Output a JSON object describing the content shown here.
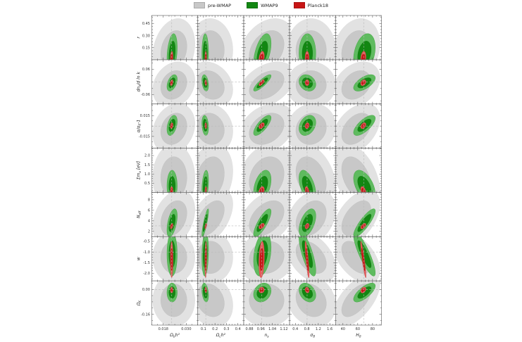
{
  "chart_data": {
    "type": "contour-grid",
    "description": "7x5 grid of 2D posterior contour panels comparing three CMB datasets",
    "legend": {
      "position": "top-center",
      "items": [
        {
          "label": "pre-WMAP",
          "color_outer": "#e2e2e2",
          "color_inner": "#c8c8c8"
        },
        {
          "label": "WMAP9",
          "color_outer": "#5fbb5f",
          "color_inner": "#128712"
        },
        {
          "label": "Planck18",
          "color_outer": "#e45c5c",
          "color_inner": "#c81515"
        }
      ]
    },
    "columns": [
      {
        "key": "ombh2",
        "label": [
          {
            "t": "Ω"
          },
          {
            "t": "b",
            "sub": true
          },
          {
            "t": "h²"
          }
        ],
        "range": [
          0.012,
          0.036
        ],
        "ticks": [
          {
            "v": 0.018,
            "l": "0.018"
          },
          {
            "v": 0.03,
            "l": "0.030"
          }
        ],
        "fiducial": 0.0224
      },
      {
        "key": "omch2",
        "label": [
          {
            "t": "Ω"
          },
          {
            "t": "c",
            "sub": true
          },
          {
            "t": "h²"
          }
        ],
        "range": [
          0.05,
          0.45
        ],
        "ticks": [
          {
            "v": 0.1,
            "l": "0.1"
          },
          {
            "v": 0.2,
            "l": "0.2"
          },
          {
            "v": 0.3,
            "l": "0.3"
          },
          {
            "v": 0.4,
            "l": "0.4"
          }
        ],
        "fiducial": 0.12
      },
      {
        "key": "ns",
        "label": [
          {
            "t": "n"
          },
          {
            "t": "s",
            "sub": true
          }
        ],
        "range": [
          0.84,
          1.16
        ],
        "ticks": [
          {
            "v": 0.88,
            "l": "0.88"
          },
          {
            "v": 0.96,
            "l": "0.96"
          },
          {
            "v": 1.04,
            "l": "1.04"
          },
          {
            "v": 1.12,
            "l": "1.12"
          }
        ],
        "fiducial": 0.965
      },
      {
        "key": "sigma8",
        "label": [
          {
            "t": "σ"
          },
          {
            "t": "8",
            "sub": true
          }
        ],
        "range": [
          0.2,
          1.8
        ],
        "ticks": [
          {
            "v": 0.4,
            "l": "0.4"
          },
          {
            "v": 0.8,
            "l": "0.8"
          },
          {
            "v": 1.2,
            "l": "1.2"
          },
          {
            "v": 1.6,
            "l": "1.6"
          }
        ],
        "fiducial": 0.81
      },
      {
        "key": "H0",
        "label": [
          {
            "t": "H"
          },
          {
            "t": "0",
            "sub": true
          }
        ],
        "range": [
          30,
          92
        ],
        "ticks": [
          {
            "v": 40,
            "l": "40"
          },
          {
            "v": 60,
            "l": "60"
          },
          {
            "v": 80,
            "l": "80"
          }
        ],
        "fiducial": 68
      }
    ],
    "rows": [
      {
        "key": "r",
        "label": [
          {
            "t": "r"
          }
        ],
        "range": [
          0,
          0.55
        ],
        "ticks": [
          {
            "v": 0.45,
            "l": "0.45"
          },
          {
            "v": 0.3,
            "l": "0.30"
          },
          {
            "v": 0.15,
            "l": "0.15"
          }
        ],
        "fiducial": null
      },
      {
        "key": "running",
        "label": [
          {
            "t": "dn"
          },
          {
            "t": "s",
            "sub": true
          },
          {
            "t": "/d ln k"
          }
        ],
        "range": [
          -0.105,
          0.105
        ],
        "ticks": [
          {
            "v": 0.06,
            "l": "0.06"
          },
          {
            "v": -0.06,
            "l": "-0.06"
          }
        ],
        "fiducial": 0
      },
      {
        "key": "alpha",
        "label": [
          {
            "t": "α/α"
          },
          {
            "t": "0",
            "sub": true
          },
          {
            "t": "-1"
          }
        ],
        "range": [
          -0.032,
          0.032
        ],
        "ticks": [
          {
            "v": 0.015,
            "l": "0.015"
          },
          {
            "v": -0.015,
            "l": "-0.015"
          }
        ],
        "fiducial": 0
      },
      {
        "key": "mnu",
        "label": [
          {
            "t": "Σm"
          },
          {
            "t": "ν",
            "sub": true
          },
          {
            "t": " [eV]"
          }
        ],
        "range": [
          0,
          2.4
        ],
        "ticks": [
          {
            "v": 2.0,
            "l": "2.0"
          },
          {
            "v": 1.5,
            "l": "1.5"
          },
          {
            "v": 1.0,
            "l": "1.0"
          },
          {
            "v": 0.5,
            "l": "0.5"
          }
        ],
        "fiducial": 0.06
      },
      {
        "key": "neff",
        "label": [
          {
            "t": "N"
          },
          {
            "t": "eff",
            "sub": true
          }
        ],
        "range": [
          1,
          9.4
        ],
        "ticks": [
          {
            "v": 8,
            "l": "8"
          },
          {
            "v": 6,
            "l": "6"
          },
          {
            "v": 4,
            "l": "4"
          },
          {
            "v": 2,
            "l": "2"
          }
        ],
        "fiducial": 3.05
      },
      {
        "key": "w",
        "label": [
          {
            "t": "w"
          }
        ],
        "range": [
          -2.35,
          -0.28
        ],
        "ticks": [
          {
            "v": -0.5,
            "l": "-0.5"
          },
          {
            "v": -1.0,
            "l": "-1.0"
          },
          {
            "v": -1.5,
            "l": "-1.5"
          },
          {
            "v": -2.0,
            "l": "-2.0"
          }
        ],
        "fiducial": -1
      },
      {
        "key": "omk",
        "label": [
          {
            "t": "Ω"
          },
          {
            "t": "K",
            "sub": true
          }
        ],
        "range": [
          -0.23,
          0.055
        ],
        "ticks": [
          {
            "v": 0.0,
            "l": "0.00"
          },
          {
            "v": -0.16,
            "l": "-0.16"
          }
        ],
        "fiducial": 0
      }
    ],
    "series": [
      {
        "name": "pre-WMAP",
        "colors": {
          "outer": "#e2e2e2",
          "inner": "#c8c8c8",
          "edge_outer": "#dadada",
          "edge_inner": "#bdbdbd"
        },
        "x": {
          "ombh2": [
            0.0235,
            0.0045
          ],
          "omch2": [
            0.16,
            0.08
          ],
          "ns": [
            1.0,
            0.08
          ],
          "sigma8": [
            0.95,
            0.35
          ],
          "H0": [
            58,
            13
          ]
        },
        "y": {
          "r": [
            0.12,
            0.16
          ],
          "running": [
            -0.015,
            0.045
          ],
          "alpha": [
            -0.004,
            0.015
          ],
          "mnu": [
            0.8,
            0.75
          ],
          "neff": [
            4.5,
            2.2
          ],
          "w": [
            -1.25,
            0.5
          ],
          "omk": [
            -0.07,
            0.07
          ]
        }
      },
      {
        "name": "WMAP9",
        "colors": {
          "outer": "#5fbb5f",
          "inner": "#128712",
          "edge_outer": "#2f9e2f",
          "edge_inner": "#0c700c"
        },
        "x": {
          "ombh2": [
            0.0226,
            0.0011
          ],
          "omch2": [
            0.115,
            0.012
          ],
          "ns": [
            0.97,
            0.025
          ],
          "sigma8": [
            0.82,
            0.12
          ],
          "H0": [
            69,
            6
          ]
        },
        "y": {
          "r": [
            0.08,
            0.1
          ],
          "running": [
            -0.005,
            0.016
          ],
          "alpha": [
            0.001,
            0.006
          ],
          "mnu": [
            0.35,
            0.35
          ],
          "neff": [
            3.6,
            1.1
          ],
          "w": [
            -1.1,
            0.42
          ],
          "omk": [
            -0.02,
            0.025
          ]
        }
      },
      {
        "name": "Planck18",
        "colors": {
          "outer": "#e45c5c",
          "inner": "#c81515",
          "edge_outer": "#c43b3b",
          "edge_inner": "#a80f0f"
        },
        "x": {
          "ombh2": [
            0.02237,
            0.0003
          ],
          "omch2": [
            0.12,
            0.0035
          ],
          "ns": [
            0.965,
            0.008
          ],
          "sigma8": [
            0.81,
            0.03
          ],
          "H0": [
            67.5,
            1.5
          ]
        },
        "y": {
          "r": [
            0.02,
            0.035
          ],
          "running": [
            -0.004,
            0.006
          ],
          "alpha": [
            0.0005,
            0.0018
          ],
          "mnu": [
            0.08,
            0.1
          ],
          "neff": [
            3.0,
            0.22
          ],
          "w": [
            -1.35,
            0.35
          ],
          "omk": [
            -0.004,
            0.008
          ]
        }
      }
    ],
    "correlations": {
      "1-1": [
        0.2,
        0.3,
        0.2
      ],
      "1-3": [
        0.3,
        0.5,
        0.3
      ],
      "1-5": [
        0.2,
        0.3,
        0.2
      ],
      "2-1": [
        0.2,
        0.45,
        0.3
      ],
      "2-2": [
        -0.2,
        -0.3,
        -0.2
      ],
      "2-3": [
        0.4,
        0.85,
        0.7
      ],
      "2-4": [
        0.0,
        -0.2,
        0.0
      ],
      "2-5": [
        0.3,
        0.6,
        0.3
      ],
      "3-1": [
        0.2,
        0.4,
        0.25
      ],
      "3-2": [
        -0.1,
        -0.2,
        -0.1
      ],
      "3-3": [
        0.3,
        0.75,
        0.5
      ],
      "3-4": [
        0.1,
        0.3,
        0.2
      ],
      "3-5": [
        0.4,
        0.7,
        0.4
      ],
      "4-2": [
        0.2,
        0.3,
        0.2
      ],
      "4-3": [
        0.2,
        0.4,
        0.3
      ],
      "4-4": [
        -0.3,
        -0.5,
        -0.4
      ],
      "4-5": [
        -0.4,
        -0.5,
        -0.4
      ],
      "5-1": [
        0.3,
        0.5,
        0.4
      ],
      "5-2": [
        0.5,
        0.85,
        0.5
      ],
      "5-3": [
        0.4,
        0.8,
        0.5
      ],
      "5-4": [
        0.3,
        0.5,
        0.3
      ],
      "5-5": [
        0.5,
        0.85,
        0.6
      ],
      "6-2": [
        0.0,
        0.15,
        0.2
      ],
      "6-3": [
        0.1,
        0.3,
        0.2
      ],
      "6-4": [
        -0.4,
        -0.75,
        -0.8
      ],
      "6-5": [
        -0.5,
        -0.85,
        -0.9
      ],
      "7-2": [
        -0.2,
        -0.3,
        -0.2
      ],
      "7-3": [
        0.0,
        0.2,
        0.1
      ],
      "7-4": [
        -0.2,
        -0.3,
        -0.2
      ],
      "7-5": [
        0.6,
        0.7,
        0.35
      ]
    },
    "style": {
      "panel_border_color": "#6f6f6f",
      "dashed_line_color": "#b8b8b8",
      "tick_color": "#444444",
      "confidence_levels": [
        2.45,
        1.52
      ]
    }
  }
}
